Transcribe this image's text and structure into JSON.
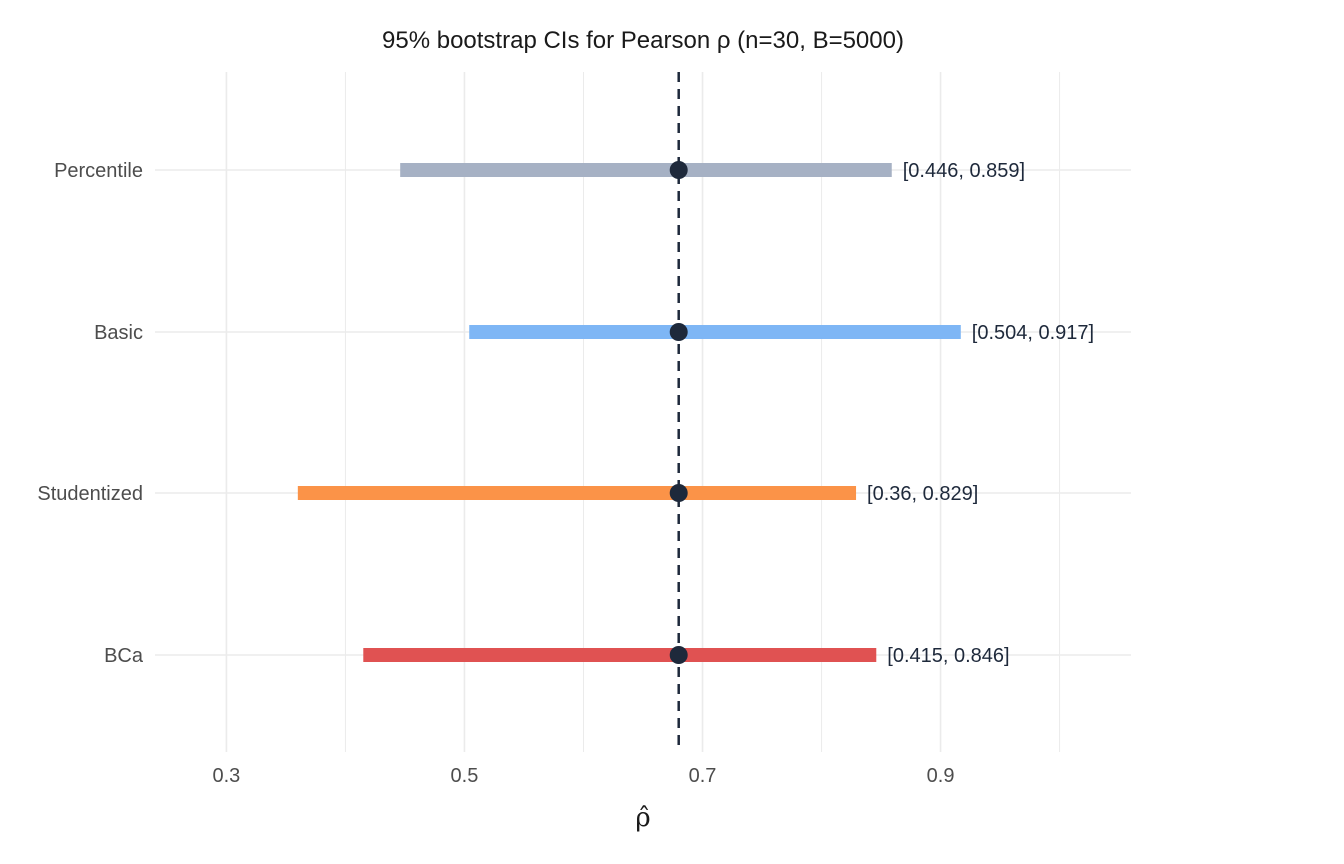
{
  "chart_data": {
    "type": "forest",
    "title": "95% bootstrap CIs for Pearson ρ (n=30, B=5000)",
    "xlabel": "ρ̂",
    "ylabel": "",
    "xlim": [
      0.24,
      1.06
    ],
    "xticks": [
      0.3,
      0.5,
      0.7,
      0.9
    ],
    "xtick_labels": [
      "0.3",
      "0.5",
      "0.7",
      "0.9"
    ],
    "estimate": 0.68,
    "estimate_line": "dashed",
    "grid": true,
    "categories": [
      "Percentile",
      "Basic",
      "Studentized",
      "BCa"
    ],
    "intervals": [
      {
        "method": "Percentile",
        "lower": 0.446,
        "upper": 0.859,
        "label": "[0.446, 0.859]",
        "color": "#a6b1c4"
      },
      {
        "method": "Basic",
        "lower": 0.504,
        "upper": 0.917,
        "label": "[0.504, 0.917]",
        "color": "#7eb6f5"
      },
      {
        "method": "Studentized",
        "lower": 0.36,
        "upper": 0.829,
        "label": "[0.36, 0.829]",
        "color": "#fb9348"
      },
      {
        "method": "BCa",
        "lower": 0.415,
        "upper": 0.846,
        "label": "[0.415, 0.846]",
        "color": "#e05252"
      }
    ],
    "point_color": "#1e293b",
    "grid_color": "#ebebeb"
  }
}
